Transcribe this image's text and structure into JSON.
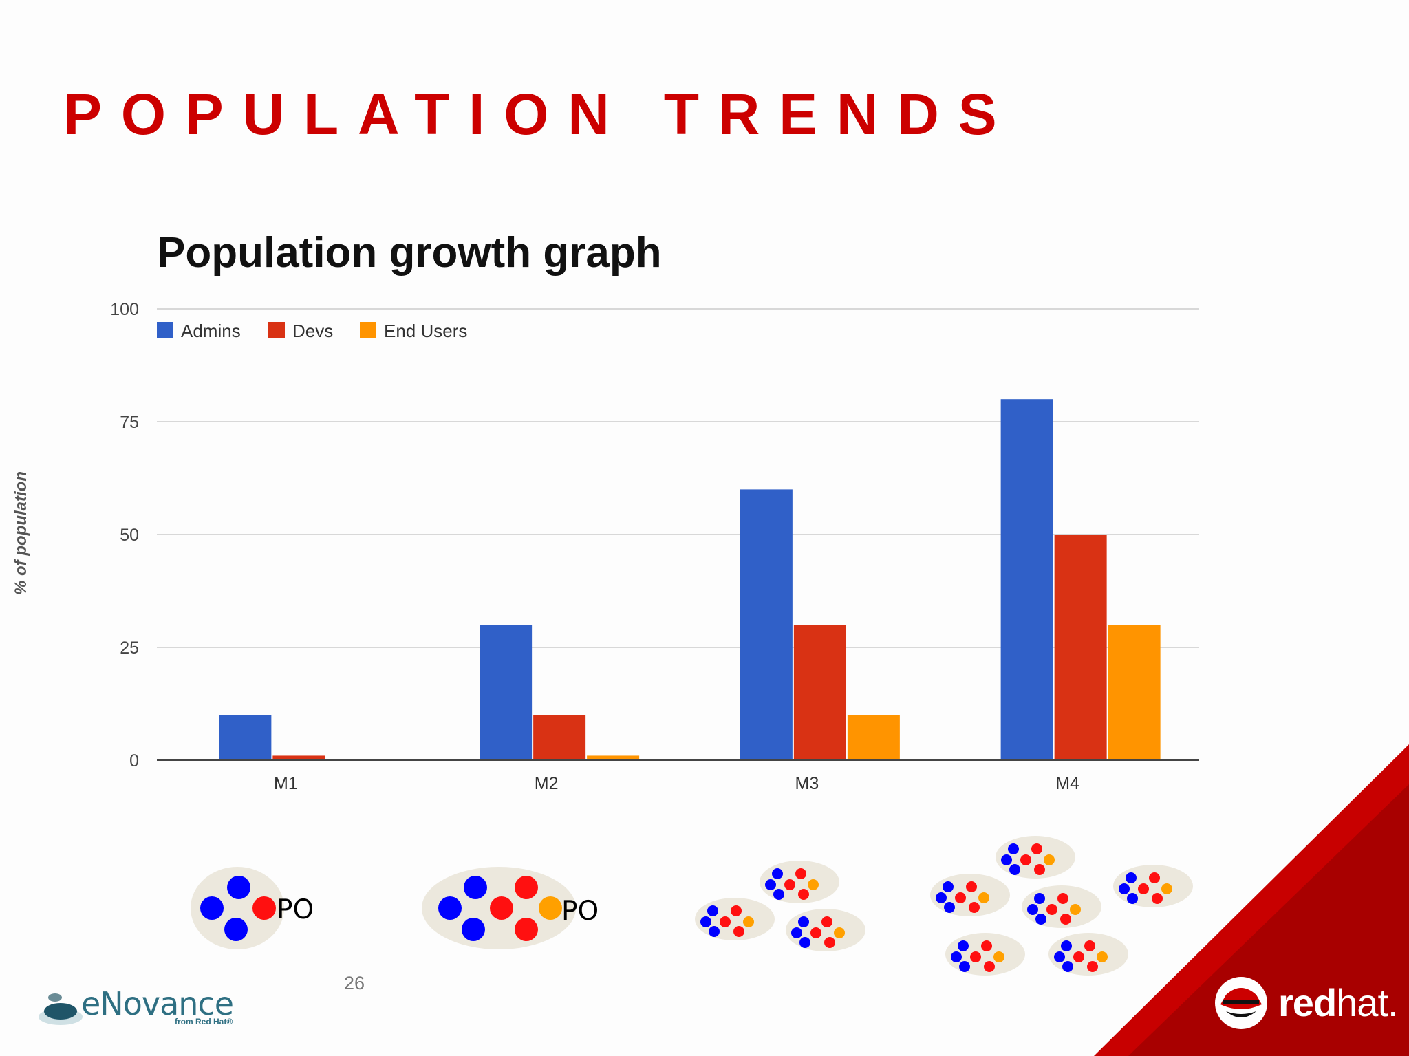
{
  "slide": {
    "title": "POPULATION TRENDS",
    "page_number": "26"
  },
  "chart_data": {
    "type": "bar",
    "title": "Population growth graph",
    "xlabel": "",
    "ylabel": "% of population",
    "ylim": [
      0,
      100
    ],
    "yticks": [
      "0",
      "25",
      "50",
      "75",
      "100"
    ],
    "grid": true,
    "legend_position": "top-left",
    "categories": [
      "M1",
      "M2",
      "M3",
      "M4"
    ],
    "series": [
      {
        "name": "Admins",
        "color": "#3060c8",
        "values": [
          10,
          30,
          60,
          80
        ]
      },
      {
        "name": "Devs",
        "color": "#d93214",
        "values": [
          1,
          10,
          30,
          50
        ]
      },
      {
        "name": "End Users",
        "color": "#ff9400",
        "values": [
          0,
          1,
          10,
          30
        ]
      }
    ]
  },
  "illustration": {
    "po_label_1": "PO",
    "po_label_2": "PO",
    "dot_colors": {
      "admin": "#0000ff",
      "dev": "#ff1010",
      "end_user": "#ffa000",
      "bubble": "#ece8dd"
    }
  },
  "branding": {
    "enovance_name": "eNovance",
    "enovance_tagline": "from Red Hat®",
    "redhat_bold": "red",
    "redhat_light": "hat.",
    "accent": "#cc0000"
  }
}
